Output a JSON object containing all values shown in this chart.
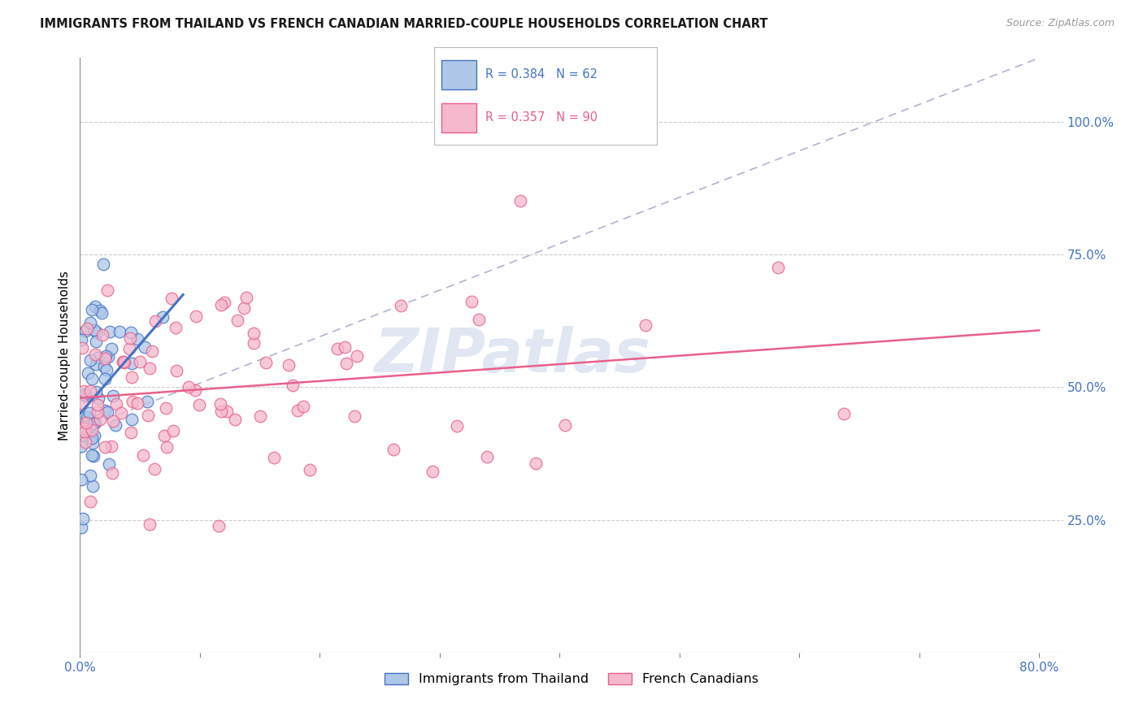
{
  "title": "IMMIGRANTS FROM THAILAND VS FRENCH CANADIAN MARRIED-COUPLE HOUSEHOLDS CORRELATION CHART",
  "source": "Source: ZipAtlas.com",
  "ylabel": "Married-couple Households",
  "legend_blue_r": "0.384",
  "legend_blue_n": "62",
  "legend_pink_r": "0.357",
  "legend_pink_n": "90",
  "blue_fill_color": "#aec6e8",
  "pink_fill_color": "#f5b8cc",
  "blue_edge_color": "#4472c4",
  "pink_edge_color": "#e8608a",
  "blue_line_color": "#4472c4",
  "pink_line_color": "#e8608a",
  "dashed_line_color": "#aaaacc",
  "axis_color": "#4472c4",
  "grid_color": "#cccccc",
  "title_color": "#1a1a1a",
  "watermark_color": "#ccd8ec",
  "watermark": "ZIPatlas",
  "xlim": [
    0.0,
    0.82
  ],
  "ylim": [
    0.0,
    1.12
  ],
  "ytick_vals": [
    0.25,
    0.5,
    0.75,
    1.0
  ],
  "ytick_labels": [
    "25.0%",
    "50.0%",
    "75.0%",
    "100.0%"
  ],
  "xtick_vals": [
    0.0,
    0.1,
    0.2,
    0.3,
    0.4,
    0.5,
    0.6,
    0.7,
    0.8
  ],
  "xtick_labels": [
    "0.0%",
    "",
    "",
    "",
    "",
    "",
    "",
    "",
    "80.0%"
  ]
}
